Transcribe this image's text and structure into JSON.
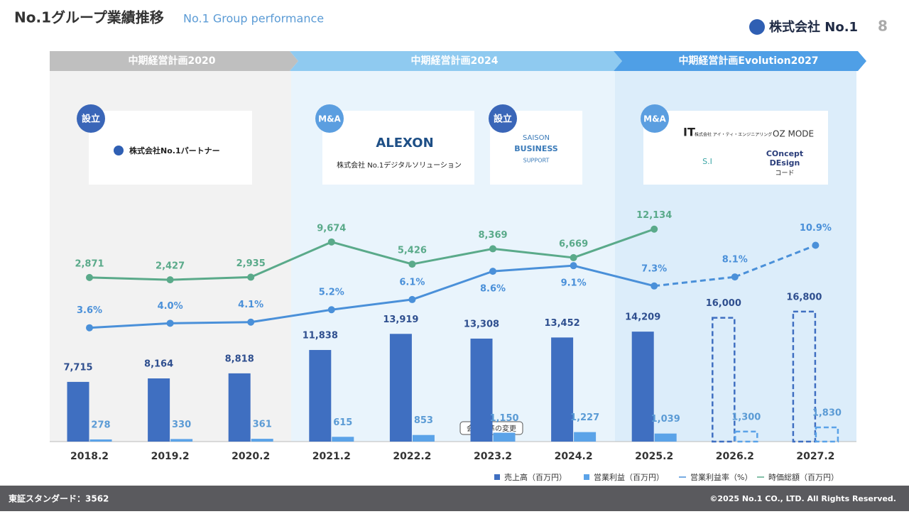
{
  "header": {
    "title": "No.1グループ業績推移",
    "subtitle": "No.1 Group performance",
    "company": "株式会社 No.1",
    "page": "8"
  },
  "phases": [
    "中期経営計画2020",
    "中期経営計画2024",
    "中期経営計画Evolution2027"
  ],
  "events": [
    {
      "tag": "設立",
      "logos": [
        "株式会社No.1パートナー"
      ]
    },
    {
      "tag": "M&A",
      "logos": [
        "ALEXON",
        "株式会社 No.1デジタルソリューション"
      ]
    },
    {
      "tag": "設立",
      "logos": [
        "SAISON",
        "BUSINESS",
        "SUPPORT"
      ]
    },
    {
      "tag": "M&A",
      "logos": [
        "IT",
        "株式会社 アイ・ティ・エンジニアリング",
        "OZ MODE",
        "S.I",
        "COncept",
        "DEsign",
        "コード"
      ]
    }
  ],
  "annotation": "会計基準の変更",
  "footer": {
    "left": "東証スタンダード：3562",
    "right": "©2025 No.1 CO., LTD. All Rights Reserved."
  },
  "chart_data": {
    "type": "bar",
    "categories": [
      "2018.2",
      "2019.2",
      "2020.2",
      "2021.2",
      "2022.2",
      "2023.2",
      "2024.2",
      "2025.2",
      "2026.2",
      "2027.2"
    ],
    "forecast_start": 8,
    "ylim": [
      0,
      20000
    ],
    "y2lim": [
      0,
      12
    ],
    "y3lim": [
      0,
      14000
    ],
    "series": [
      {
        "name": "売上高（百万円）",
        "color": "#3f6fc1",
        "values": [
          7715,
          8164,
          8818,
          11838,
          13919,
          13308,
          13452,
          14209,
          16000,
          16800
        ],
        "value_labels": [
          "7,715",
          "8,164",
          "8,818",
          "11,838",
          "13,919",
          "13,308",
          "13,452",
          "14,209",
          "16,000",
          "16,800"
        ]
      },
      {
        "name": "営業利益（百万円）",
        "color": "#5ba3e8",
        "values": [
          278,
          330,
          361,
          615,
          853,
          1150,
          1227,
          1039,
          1300,
          1830
        ],
        "value_labels": [
          "278",
          "330",
          "361",
          "615",
          "853",
          "1,150",
          "1,227",
          "1,039",
          "1,300",
          "1,830"
        ]
      },
      {
        "name": "営業利益率（%）",
        "color": "#4a90d9",
        "axis": "y2",
        "values": [
          3.6,
          4.0,
          4.1,
          5.2,
          6.1,
          8.6,
          9.1,
          7.3,
          8.1,
          10.9
        ],
        "value_labels": [
          "3.6%",
          "4.0%",
          "4.1%",
          "5.2%",
          "6.1%",
          "8.6%",
          "9.1%",
          "7.3%",
          "8.1%",
          "10.9%"
        ]
      },
      {
        "name": "時価総額（百万円）",
        "color": "#5aaa8a",
        "axis": "y3",
        "values": [
          2871,
          2427,
          2935,
          9674,
          5426,
          8369,
          6669,
          12134,
          null,
          null
        ],
        "value_labels": [
          "2,871",
          "2,427",
          "2,935",
          "9,674",
          "5,426",
          "8,369",
          "6,669",
          "12,134",
          null,
          null
        ]
      }
    ]
  }
}
